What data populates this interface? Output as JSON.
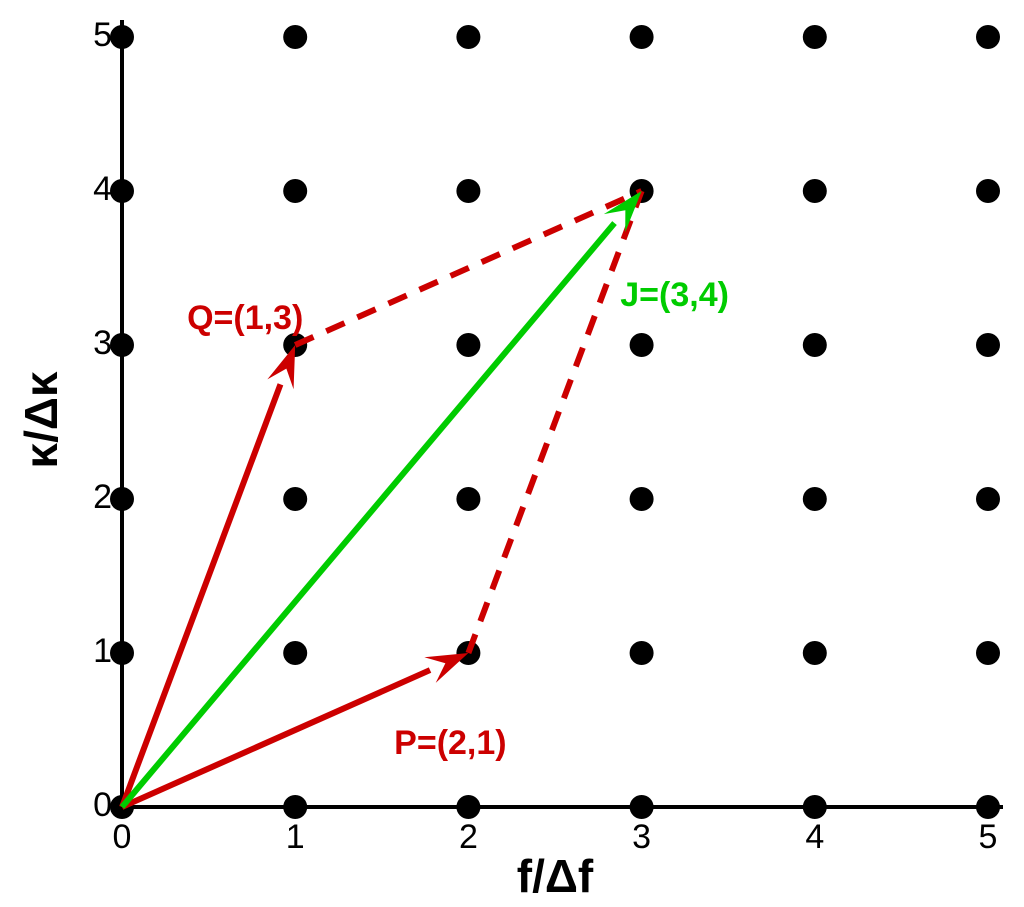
{
  "chart_data": {
    "type": "scatter",
    "x_label": "f/Δf",
    "y_label": "κ/Δκ",
    "x": [
      0,
      1,
      2,
      3,
      4,
      5,
      0,
      1,
      2,
      3,
      4,
      5,
      0,
      1,
      2,
      3,
      4,
      5,
      0,
      1,
      2,
      3,
      4,
      5,
      0,
      1,
      2,
      3,
      4,
      5,
      0,
      1,
      2,
      3,
      4,
      5
    ],
    "values": [
      0,
      0,
      0,
      0,
      0,
      0,
      1,
      1,
      1,
      1,
      1,
      1,
      2,
      2,
      2,
      2,
      2,
      2,
      3,
      3,
      3,
      3,
      3,
      3,
      4,
      4,
      4,
      4,
      4,
      4,
      5,
      5,
      5,
      5,
      5,
      5
    ],
    "color": "#000000",
    "xlim": [
      0,
      5
    ],
    "ylim": [
      0,
      5
    ],
    "xticks": [
      0,
      1,
      2,
      3,
      4,
      5
    ],
    "yticks": [
      0,
      1,
      2,
      3,
      4,
      5
    ],
    "vectors": [
      {
        "label": "P=(2,1)",
        "from": [
          0,
          0
        ],
        "to": [
          2,
          1
        ],
        "color": "#cc0000"
      },
      {
        "label": "Q=(1,3)",
        "from": [
          0,
          0
        ],
        "to": [
          1,
          3
        ],
        "color": "#cc0000"
      },
      {
        "label": "J=(3,4)",
        "from": [
          0,
          0
        ],
        "to": [
          3,
          4
        ],
        "color": "#00cc00"
      }
    ],
    "dashed_lines": [
      {
        "from": [
          2,
          1
        ],
        "to": [
          3,
          4
        ],
        "color": "#cc0000"
      },
      {
        "from": [
          1,
          3
        ],
        "to": [
          3,
          4
        ],
        "color": "#cc0000"
      }
    ]
  }
}
